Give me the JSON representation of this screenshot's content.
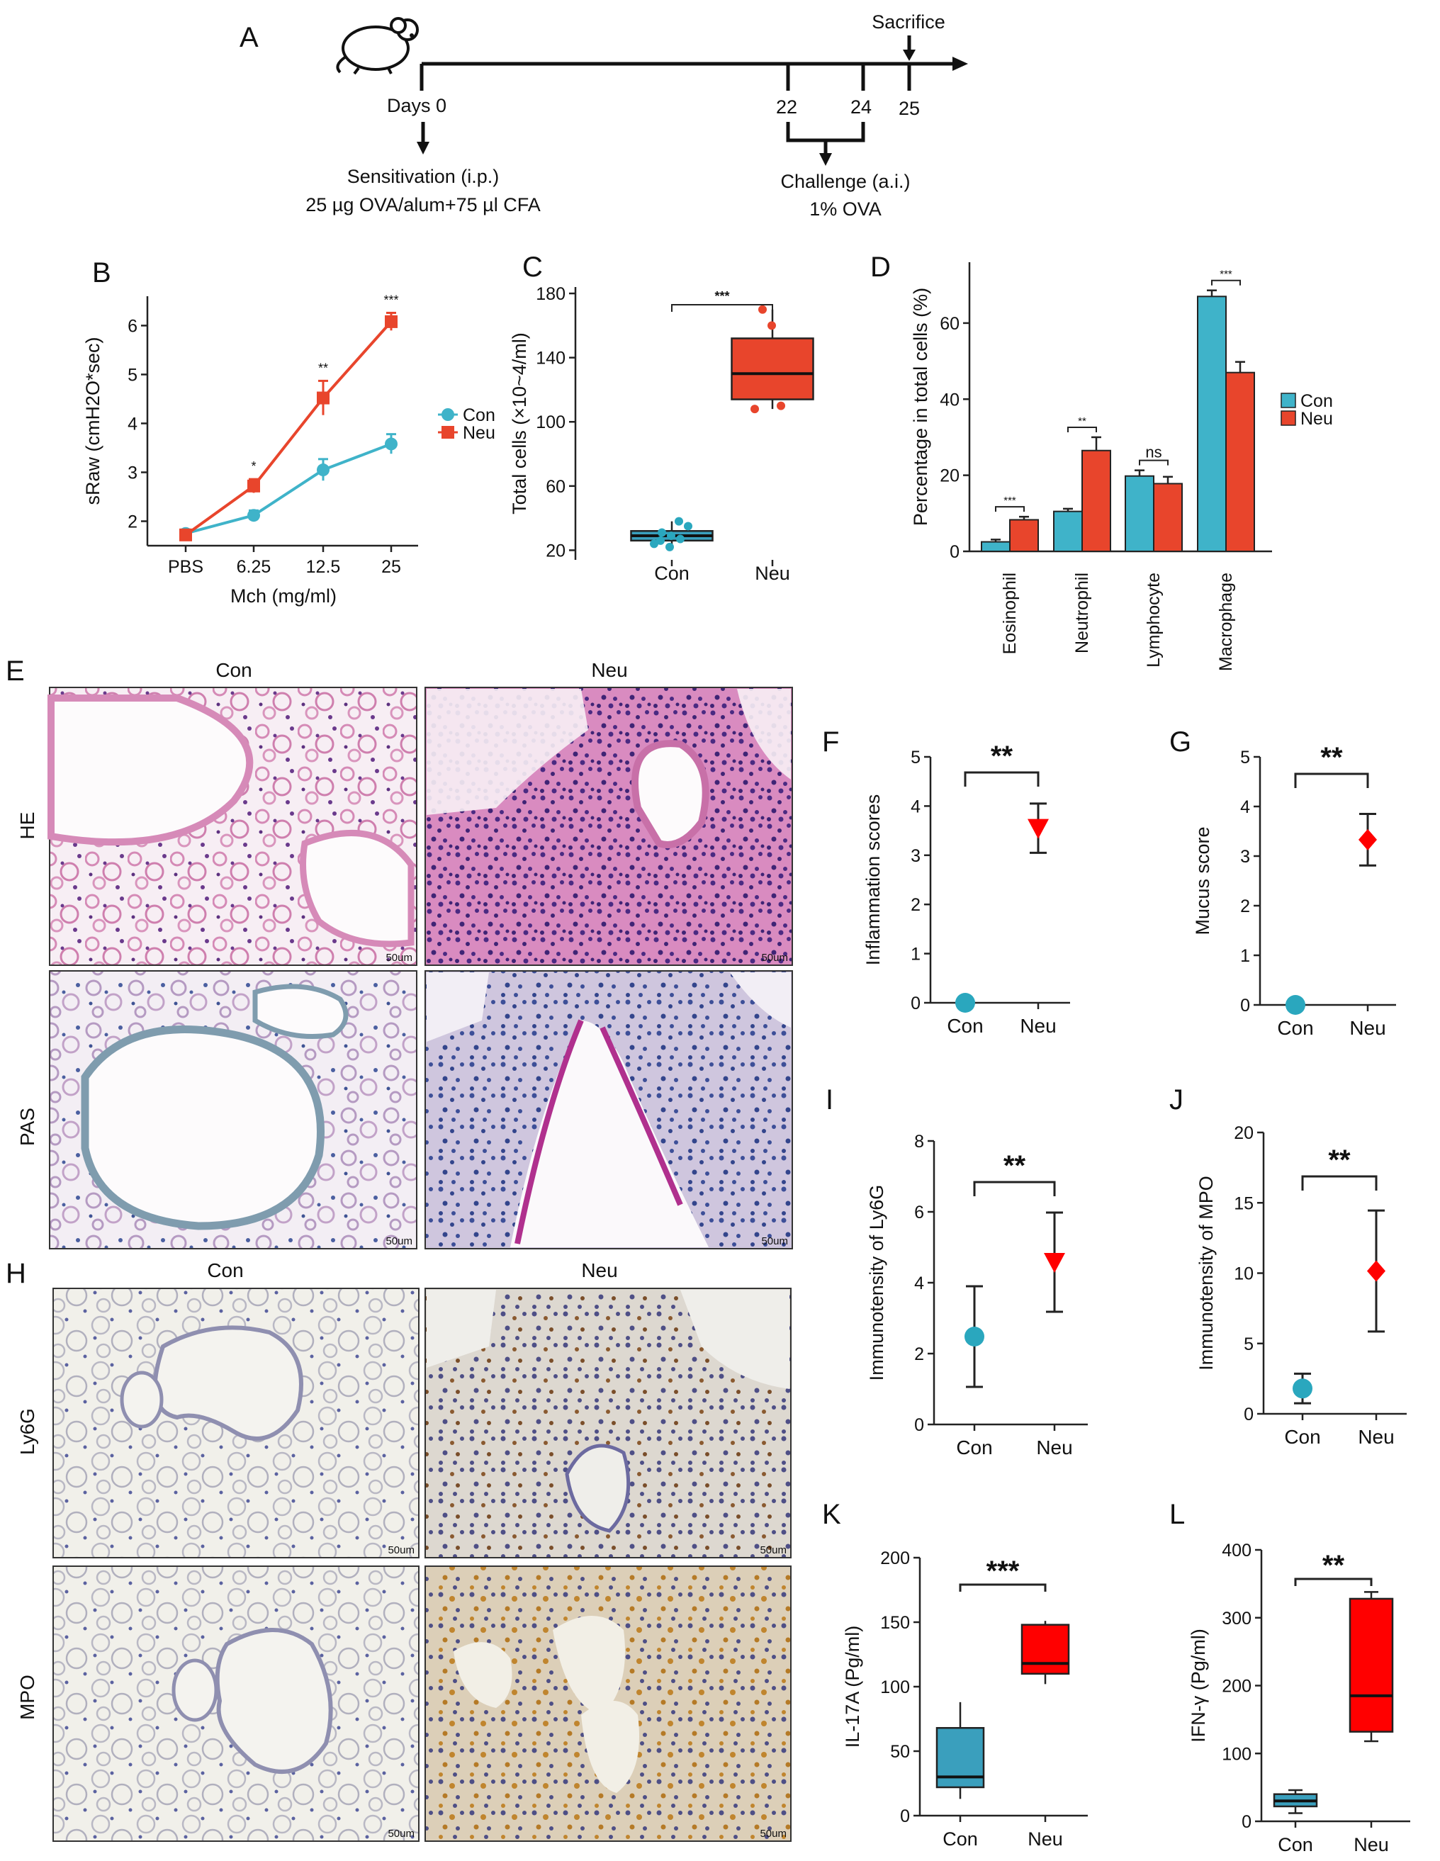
{
  "panel_letters": [
    "A",
    "B",
    "C",
    "D",
    "E",
    "F",
    "G",
    "H",
    "I",
    "J",
    "K",
    "L"
  ],
  "timeline": {
    "sacrifice": "Sacrifice",
    "days0": "Days 0",
    "d22": "22",
    "d24": "24",
    "d25": "25",
    "sens1": "Sensitivation (i.p.)",
    "sens2": "25 µg OVA/alum+75 µl CFA",
    "chal1": "Challenge (a.i.)",
    "chal2": "1% OVA"
  },
  "colors": {
    "con": "#3fb3c9",
    "neu": "#e8452c",
    "con_dot": "#2aa7be",
    "neu_red": "#ff0000",
    "box_con": "#3a9fbd"
  },
  "micro": {
    "E_con": "Con",
    "E_neu": "Neu",
    "E_row1": "HE",
    "E_row2": "PAS",
    "H_con": "Con",
    "H_neu": "Neu",
    "H_row1": "Ly6G",
    "H_row2": "MPO",
    "scale": "50um"
  },
  "chart_data": [
    {
      "id": "B",
      "type": "line",
      "categories": [
        "PBS",
        "6.25",
        "12.5",
        "25"
      ],
      "series": [
        {
          "name": "Con",
          "values": [
            1.75,
            2.12,
            3.05,
            3.58
          ],
          "err": [
            0.08,
            0.1,
            0.22,
            0.2
          ]
        },
        {
          "name": "Neu",
          "values": [
            1.72,
            2.72,
            4.52,
            6.08
          ],
          "err": [
            0.1,
            0.14,
            0.35,
            0.18
          ]
        }
      ],
      "yticks": [
        "2",
        "3",
        "4",
        "5",
        "6"
      ],
      "ylim": [
        1.5,
        6.6
      ],
      "xlabel": "Mch (mg/ml)",
      "ylabel": "sRaw (cmH2O*sec)",
      "stars": [
        "*",
        "**",
        "***"
      ],
      "legend": [
        "Con",
        "Neu"
      ],
      "legend_position": "right"
    },
    {
      "id": "C",
      "type": "box",
      "categories": [
        "Con",
        "Neu"
      ],
      "boxes": [
        {
          "min": 20,
          "q1": 26,
          "median": 29,
          "q3": 32,
          "max": 38,
          "points": [
            24,
            27,
            29,
            31,
            35,
            38,
            22,
            26
          ]
        },
        {
          "min": 108,
          "q1": 114,
          "median": 130,
          "q3": 152,
          "max": 170,
          "points": [
            108,
            110,
            160,
            170
          ]
        }
      ],
      "yticks": [
        "20",
        "60",
        "100",
        "140",
        "180"
      ],
      "ylim": [
        14,
        184
      ],
      "ylabel": "Total cells (×10~4/ml)",
      "star": "***"
    },
    {
      "id": "D",
      "type": "bar",
      "categories": [
        "Eosinophil",
        "Neutrophil",
        "Lymphocyte",
        "Macrophage"
      ],
      "series": [
        {
          "name": "Con",
          "values": [
            2.5,
            10.5,
            19.8,
            67
          ],
          "err": [
            0.6,
            0.7,
            1.5,
            1.6
          ]
        },
        {
          "name": "Neu",
          "values": [
            8.3,
            26.5,
            17.8,
            47
          ],
          "err": [
            0.8,
            3.5,
            1.8,
            2.8
          ]
        }
      ],
      "yticks": [
        "0",
        "20",
        "40",
        "60"
      ],
      "ylim": [
        0,
        76
      ],
      "ylabel": "Percentage in total cells (%)",
      "sig": [
        "***",
        "**",
        "ns",
        "***"
      ],
      "legend": [
        "Con",
        "Neu"
      ],
      "legend_position": "right"
    },
    {
      "id": "F",
      "type": "scatter",
      "categories": [
        "Con",
        "Neu"
      ],
      "points": [
        {
          "y": 0,
          "err": 0
        },
        {
          "y": 3.55,
          "err": 0.5
        }
      ],
      "yticks": [
        "0",
        "1",
        "2",
        "3",
        "4",
        "5"
      ],
      "ylim": [
        0,
        5
      ],
      "ylabel": "Inflammation scores",
      "star": "**"
    },
    {
      "id": "G",
      "type": "scatter",
      "categories": [
        "Con",
        "Neu"
      ],
      "points": [
        {
          "y": 0,
          "err": 0
        },
        {
          "y": 3.33,
          "err": 0.52
        }
      ],
      "yticks": [
        "0",
        "1",
        "2",
        "3",
        "4",
        "5"
      ],
      "ylim": [
        0,
        5
      ],
      "ylabel": "Mucus score",
      "star": "**"
    },
    {
      "id": "I",
      "type": "scatter",
      "categories": [
        "Con",
        "Neu"
      ],
      "points": [
        {
          "y": 2.48,
          "err": 1.42
        },
        {
          "y": 4.58,
          "err": 1.4
        }
      ],
      "yticks": [
        "0",
        "2",
        "4",
        "6",
        "8"
      ],
      "ylim": [
        0,
        8
      ],
      "ylabel": "Immunotensity of Ly6G",
      "star": "**"
    },
    {
      "id": "J",
      "type": "scatter",
      "categories": [
        "Con",
        "Neu"
      ],
      "points": [
        {
          "y": 1.8,
          "err": 1.05
        },
        {
          "y": 10.15,
          "err": 4.3
        }
      ],
      "yticks": [
        "0",
        "5",
        "10",
        "15",
        "20"
      ],
      "ylim": [
        0,
        20
      ],
      "ylabel": "Immunotensity of MPO",
      "star": "**"
    },
    {
      "id": "K",
      "type": "box",
      "categories": [
        "Con",
        "Neu"
      ],
      "boxes": [
        {
          "min": 13,
          "q1": 22,
          "median": 30,
          "q3": 68,
          "max": 88
        },
        {
          "min": 102,
          "q1": 110,
          "median": 118,
          "q3": 148,
          "max": 151
        }
      ],
      "yticks": [
        "0",
        "50",
        "100",
        "150",
        "200"
      ],
      "ylim": [
        0,
        200
      ],
      "ylabel": "IL-17A (Pg/ml)",
      "star": "***"
    },
    {
      "id": "L",
      "type": "box",
      "categories": [
        "Con",
        "Neu"
      ],
      "boxes": [
        {
          "min": 12,
          "q1": 22,
          "median": 30,
          "q3": 40,
          "max": 46
        },
        {
          "min": 118,
          "q1": 132,
          "median": 185,
          "q3": 328,
          "max": 338
        }
      ],
      "yticks": [
        "0",
        "100",
        "200",
        "300",
        "400"
      ],
      "ylim": [
        0,
        400
      ],
      "ylabel": "IFN-γ (Pg/ml)",
      "star": "**"
    }
  ]
}
